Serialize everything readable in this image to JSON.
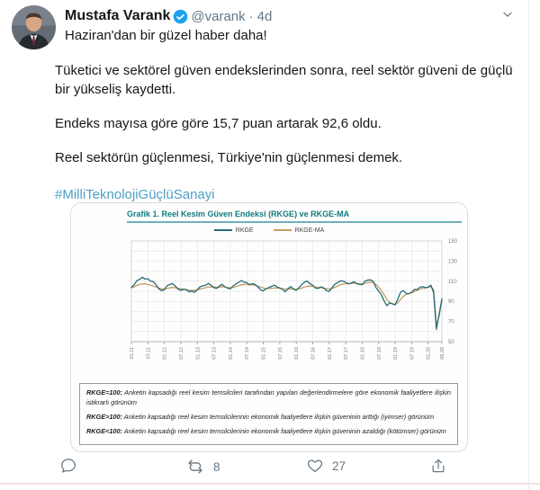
{
  "colors": {
    "link_blue": "#4f9fc7",
    "verified_blue": "#1da1f2",
    "muted_gray": "#657786",
    "chart_title_teal": "#127a7e",
    "rkge_line": "#256d77",
    "rkge_ma_line": "#c49c63"
  },
  "tweet": {
    "author": "Mustafa Varank",
    "handle": "@varank",
    "separator": "·",
    "timestamp": "4d",
    "intro": "Haziran'dan bir güzel haber daha!",
    "paragraphs": [
      "Tüketici ve sektörel güven endekslerinden sonra, reel sektör güveni de güçlü bir yükseliş kaydetti.",
      "Endeks mayısa göre göre 15,7 puan artarak 92,6 oldu.",
      "Reel sektörün güçlenmesi, Türkiye'nin güçlenmesi demek."
    ],
    "hashtag": "#MilliTeknolojiGüçlüSanayi"
  },
  "actions": {
    "reply_count": "",
    "retweet_count": "8",
    "like_count": "27"
  },
  "icons": {
    "more": "chevron-down",
    "verified": "verified-check",
    "reply": "speech-bubble",
    "retweet": "retweet-arrows",
    "like": "heart-outline",
    "share": "share-arrow-up"
  },
  "chart_data": {
    "type": "line",
    "title": "Grafik 1. Reel Kesim Güven Endeksi (RKGE) ve RKGE-MA",
    "ylim": [
      50,
      150
    ],
    "y_ticks": [
      150,
      130,
      110,
      90,
      70,
      50
    ],
    "grid": "on",
    "legend_position": "top-center",
    "x_tick_labels": [
      "01.11",
      "07.11",
      "01.12",
      "07.12",
      "01.13",
      "07.13",
      "01.14",
      "07.14",
      "01.15",
      "07.15",
      "01.16",
      "07.16",
      "01.17",
      "07.17",
      "01.18",
      "07.18",
      "01.19",
      "07.19",
      "01.20",
      "06.20"
    ],
    "x_tick_indices": [
      0,
      6,
      12,
      18,
      24,
      30,
      36,
      42,
      48,
      54,
      60,
      66,
      72,
      78,
      84,
      90,
      96,
      102,
      108,
      113
    ],
    "series": [
      {
        "name": "RKGE",
        "color": "#256d77",
        "values": [
          104.0,
          106.5,
          110.6,
          111.9,
          113.9,
          112.1,
          112.5,
          110.0,
          109.6,
          106.3,
          102.4,
          100.6,
          101.5,
          105.5,
          106.9,
          107.7,
          105.1,
          102.2,
          100.9,
          102.1,
          101.4,
          99.5,
          100.1,
          99.0,
          101.6,
          104.5,
          105.5,
          105.9,
          107.9,
          106.0,
          103.7,
          102.8,
          105.2,
          107.0,
          104.4,
          103.0,
          102.5,
          105.3,
          107.2,
          108.9,
          110.7,
          109.1,
          108.6,
          106.5,
          107.6,
          106.9,
          104.5,
          101.5,
          100.4,
          102.5,
          103.7,
          104.9,
          106.1,
          104.3,
          103.2,
          102.0,
          99.5,
          102.6,
          104.7,
          102.2,
          101.1,
          103.6,
          106.7,
          109.0,
          110.2,
          107.5,
          106.0,
          103.0,
          102.9,
          104.4,
          103.2,
          100.5,
          99.9,
          103.6,
          107.0,
          108.6,
          110.4,
          110.2,
          108.8,
          107.3,
          108.3,
          109.5,
          107.9,
          106.8,
          106.6,
          109.9,
          111.2,
          111.3,
          109.9,
          103.8,
          100.1,
          96.4,
          90.4,
          85.7,
          88.5,
          87.6,
          86.5,
          92.6,
          99.3,
          100.7,
          97.9,
          97.6,
          99.0,
          102.0,
          101.8,
          104.0,
          104.6,
          103.6,
          104.2,
          106.1,
          98.6,
          62.3,
          76.9,
          92.6
        ]
      },
      {
        "name": "RKGE-MA",
        "color": "#c49c63",
        "values": [
          103.5,
          104.5,
          105.8,
          106.8,
          107.5,
          107.3,
          106.8,
          106.0,
          105.2,
          104.2,
          103.2,
          102.5,
          102.3,
          102.8,
          103.4,
          103.8,
          103.6,
          103.0,
          102.4,
          102.0,
          101.6,
          101.2,
          101.0,
          101.0,
          101.4,
          102.2,
          103.0,
          103.6,
          104.2,
          104.4,
          104.2,
          104.0,
          104.2,
          104.6,
          104.4,
          103.8,
          103.4,
          103.8,
          104.6,
          105.6,
          106.4,
          106.8,
          106.8,
          106.6,
          106.4,
          106.0,
          105.2,
          104.2,
          103.2,
          102.8,
          102.8,
          103.0,
          103.2,
          103.2,
          103.0,
          102.6,
          102.2,
          102.2,
          102.4,
          102.2,
          102.0,
          102.4,
          103.2,
          104.2,
          105.0,
          105.2,
          104.8,
          104.2,
          103.8,
          103.6,
          103.2,
          102.6,
          102.2,
          102.8,
          104.0,
          105.2,
          106.4,
          107.2,
          107.6,
          107.6,
          107.8,
          108.0,
          107.8,
          107.4,
          107.2,
          107.8,
          108.6,
          109.0,
          108.6,
          106.8,
          104.2,
          100.8,
          96.4,
          91.8,
          88.8,
          87.4,
          87.2,
          88.8,
          92.0,
          95.2,
          97.0,
          97.8,
          98.6,
          99.8,
          100.8,
          102.0,
          103.0,
          103.4,
          103.8,
          104.6,
          101.8,
          66.8,
          75.2,
          90.8
        ]
      }
    ],
    "notes": [
      {
        "label": "RKGE=100:",
        "text": "Anketin kapsadığı reel kesim temsilcileri tarafından yapılan değerlendirmelere göre ekonomik faaliyetlere ilişkin istikrarlı görünüm"
      },
      {
        "label": "RKGE>100:",
        "text": "Anketin kapsadığı reel kesim temsilcilerinin ekonomik faaliyetlere ilişkin güveninin arttığı (iyimser) görünüm"
      },
      {
        "label": "RKGE<100:",
        "text": "Anketin kapsadığı reel kesim temsilcilerinin ekonomik faaliyetlere ilişkin güveninin azaldığı (kötümser) görünüm"
      }
    ]
  }
}
